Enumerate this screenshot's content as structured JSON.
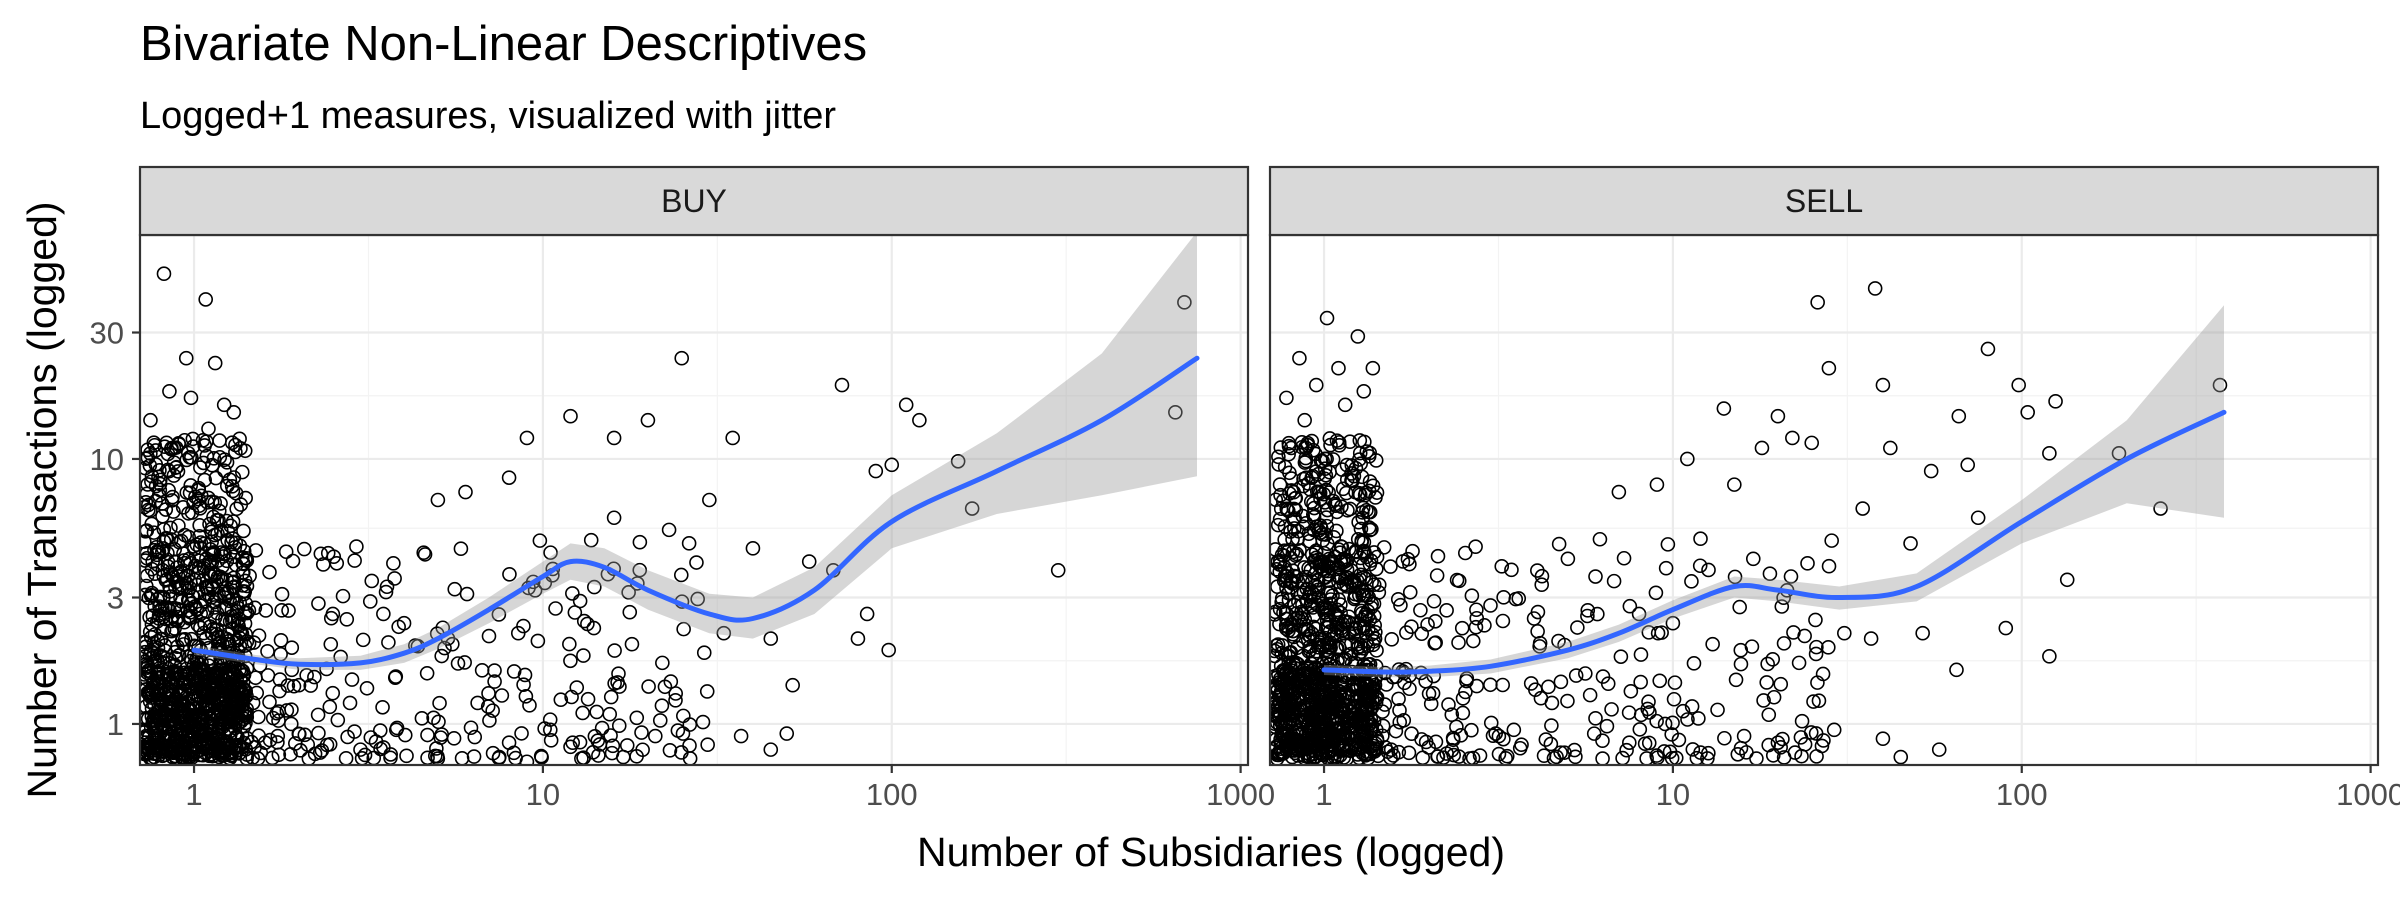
{
  "chart_data": {
    "type": "scatter",
    "title": "Bivariate Non-Linear Descriptives",
    "subtitle": "Logged+1 measures, visualized with jitter",
    "xlabel": "Number of Subsidiaries (logged)",
    "ylabel": "Number of Transactions (logged)",
    "x_scale": "log",
    "y_scale": "log",
    "xlim": [
      0.7,
      1050
    ],
    "ylim": [
      0.7,
      70
    ],
    "x_ticks": [
      1,
      10,
      100,
      1000
    ],
    "x_tick_labels": [
      "1",
      "10",
      "100",
      "1000"
    ],
    "y_ticks": [
      1,
      3,
      10,
      30
    ],
    "y_tick_labels": [
      "1",
      "3",
      "10",
      "30"
    ],
    "grid": true,
    "legend": "none",
    "smoother": {
      "color": "#3366ff",
      "ribbon_color": "#999999"
    },
    "panels": [
      {
        "label": "BUY",
        "smooth": {
          "x": [
            1,
            1.5,
            2,
            3,
            4,
            5,
            7,
            10,
            12,
            15,
            20,
            30,
            40,
            60,
            100,
            200,
            400,
            750
          ],
          "y": [
            1.9,
            1.75,
            1.68,
            1.7,
            1.85,
            2.1,
            2.7,
            3.6,
            4.1,
            3.9,
            3.2,
            2.6,
            2.5,
            3.2,
            5.8,
            9.0,
            14.0,
            24.0
          ],
          "lower": [
            1.82,
            1.68,
            1.6,
            1.6,
            1.7,
            1.92,
            2.4,
            3.1,
            3.5,
            3.3,
            2.7,
            2.2,
            2.1,
            2.6,
            4.6,
            6.2,
            7.3,
            8.6
          ],
          "upper": [
            1.98,
            1.82,
            1.77,
            1.81,
            2.0,
            2.3,
            3.0,
            4.1,
            4.8,
            4.6,
            3.8,
            3.1,
            3.0,
            3.9,
            7.3,
            12.5,
            25.0,
            72.0
          ]
        },
        "points": [
          [
            0.82,
            50.0
          ],
          [
            1.08,
            40.0
          ],
          [
            0.95,
            24.0
          ],
          [
            1.15,
            23.0
          ],
          [
            0.85,
            18.0
          ],
          [
            0.98,
            17.0
          ],
          [
            1.22,
            16.0
          ],
          [
            1.3,
            15.0
          ],
          [
            0.75,
            14.0
          ],
          [
            1.1,
            13.0
          ],
          [
            25,
            24.0
          ],
          [
            72,
            19.0
          ],
          [
            110,
            16.0
          ],
          [
            120,
            14.0
          ],
          [
            20,
            14.0
          ],
          [
            690,
            39.0
          ],
          [
            650,
            15.0
          ],
          [
            12,
            14.5
          ],
          [
            9,
            12.0
          ],
          [
            16,
            12.0
          ],
          [
            35,
            12.0
          ],
          [
            100,
            9.5
          ],
          [
            90,
            9.0
          ],
          [
            155,
            9.8
          ],
          [
            170,
            6.5
          ],
          [
            8,
            8.5
          ],
          [
            6,
            7.5
          ],
          [
            30,
            7.0
          ],
          [
            5,
            7.0
          ],
          [
            16,
            6.0
          ],
          [
            23,
            5.4
          ],
          [
            40,
            4.6
          ],
          [
            58,
            4.1
          ],
          [
            300,
            3.8
          ],
          [
            68,
            3.8
          ],
          [
            2.5,
            2.6
          ],
          [
            3.2,
            2.9
          ],
          [
            4.0,
            2.4
          ],
          [
            5.5,
            2.0
          ],
          [
            8.5,
            2.2
          ],
          [
            14,
            2.3
          ],
          [
            18,
            2.0
          ],
          [
            22,
            1.7
          ],
          [
            33,
            2.2
          ],
          [
            45,
            2.1
          ],
          [
            52,
            1.4
          ],
          [
            85,
            2.6
          ],
          [
            98,
            1.9
          ],
          [
            80,
            2.1
          ],
          [
            13,
            1.1
          ],
          [
            2.0,
            1.4
          ],
          [
            2.8,
            1.2
          ],
          [
            3.8,
            0.95
          ],
          [
            4.5,
            1.05
          ],
          [
            6.5,
            1.2
          ],
          [
            8.0,
            0.85
          ],
          [
            10.5,
            0.95
          ],
          [
            12,
            0.82
          ],
          [
            17,
            0.75
          ],
          [
            21,
            0.9
          ],
          [
            37,
            0.9
          ],
          [
            45,
            0.8
          ],
          [
            50,
            0.92
          ],
          [
            2.3,
            0.78
          ],
          [
            3.0,
            0.8
          ],
          [
            5.0,
            0.74
          ],
          [
            7.5,
            0.75
          ],
          [
            9.0,
            0.72
          ],
          [
            1.6,
            0.85
          ],
          [
            1.9,
            1.0
          ]
        ]
      },
      {
        "label": "SELL",
        "smooth": {
          "x": [
            1,
            1.5,
            2,
            3,
            5,
            7,
            10,
            15,
            20,
            30,
            50,
            100,
            200,
            380
          ],
          "y": [
            1.6,
            1.57,
            1.58,
            1.65,
            1.9,
            2.2,
            2.7,
            3.3,
            3.2,
            3.0,
            3.3,
            5.8,
            10.0,
            15.0
          ],
          "lower": [
            1.53,
            1.5,
            1.5,
            1.55,
            1.77,
            2.04,
            2.5,
            3.0,
            2.9,
            2.7,
            2.9,
            4.8,
            6.8,
            6.0
          ],
          "upper": [
            1.67,
            1.64,
            1.66,
            1.75,
            2.04,
            2.37,
            2.93,
            3.6,
            3.5,
            3.3,
            3.7,
            7.0,
            14.0,
            38.0
          ]
        },
        "points": [
          [
            1.02,
            34.0
          ],
          [
            1.25,
            29.0
          ],
          [
            0.85,
            24.0
          ],
          [
            1.1,
            22.0
          ],
          [
            1.38,
            22.0
          ],
          [
            0.95,
            19.0
          ],
          [
            1.3,
            18.0
          ],
          [
            0.78,
            17.0
          ],
          [
            1.15,
            16.0
          ],
          [
            0.88,
            14.0
          ],
          [
            26,
            39.0
          ],
          [
            38,
            44.0
          ],
          [
            80,
            26.0
          ],
          [
            28,
            22.0
          ],
          [
            40,
            19.0
          ],
          [
            98,
            19.0
          ],
          [
            125,
            16.5
          ],
          [
            370,
            19.0
          ],
          [
            14,
            15.5
          ],
          [
            20,
            14.5
          ],
          [
            22,
            12.0
          ],
          [
            25,
            11.5
          ],
          [
            42,
            11.0
          ],
          [
            66,
            14.5
          ],
          [
            104,
            15.0
          ],
          [
            18,
            11.0
          ],
          [
            11,
            10.0
          ],
          [
            7,
            7.5
          ],
          [
            9,
            8.0
          ],
          [
            15,
            8.0
          ],
          [
            55,
            9.0
          ],
          [
            70,
            9.5
          ],
          [
            120,
            10.5
          ],
          [
            190,
            10.5
          ],
          [
            250,
            6.5
          ],
          [
            12,
            5.0
          ],
          [
            17,
            4.2
          ],
          [
            35,
            6.5
          ],
          [
            48,
            4.8
          ],
          [
            75,
            6.0
          ],
          [
            5,
            4.2
          ],
          [
            6,
            3.6
          ],
          [
            3.0,
            2.8
          ],
          [
            4.0,
            2.5
          ],
          [
            8,
            2.6
          ],
          [
            10,
            2.4
          ],
          [
            13,
            2.0
          ],
          [
            23,
            1.7
          ],
          [
            31,
            2.2
          ],
          [
            37,
            2.1
          ],
          [
            52,
            2.2
          ],
          [
            90,
            2.3
          ],
          [
            120,
            1.8
          ],
          [
            135,
            3.5
          ],
          [
            65,
            1.6
          ],
          [
            2.0,
            1.3
          ],
          [
            2.5,
            1.1
          ],
          [
            3.5,
            0.95
          ],
          [
            4.5,
            1.2
          ],
          [
            6.0,
            1.05
          ],
          [
            7.5,
            0.85
          ],
          [
            9.5,
            1.0
          ],
          [
            12,
            0.78
          ],
          [
            16,
            0.9
          ],
          [
            20,
            0.85
          ],
          [
            29,
            0.95
          ],
          [
            40,
            0.88
          ],
          [
            45,
            0.75
          ],
          [
            58,
            0.8
          ],
          [
            2.8,
            0.76
          ]
        ]
      }
    ]
  }
}
